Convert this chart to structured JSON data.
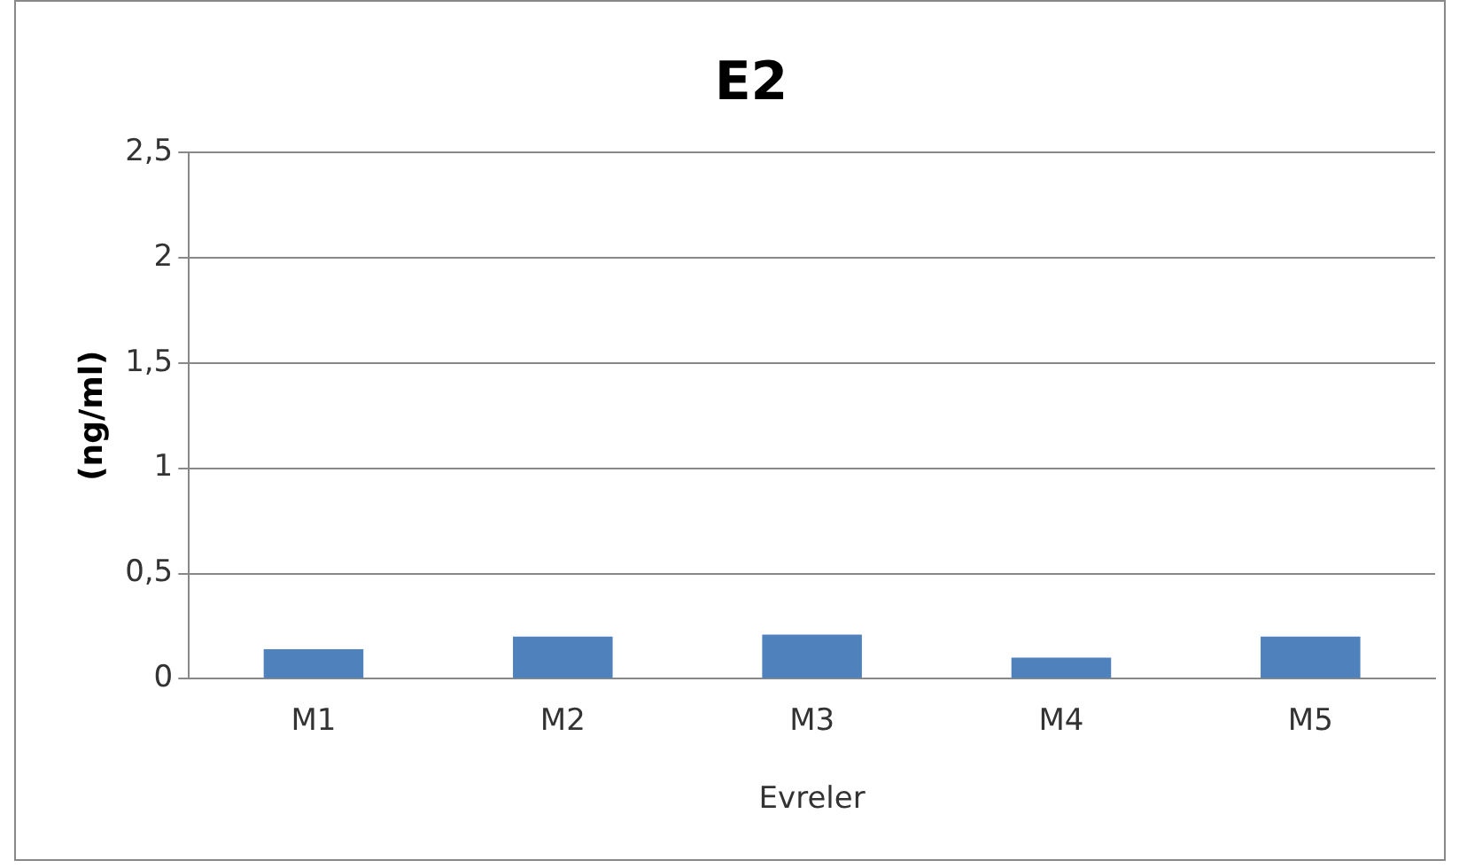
{
  "chart_data": {
    "type": "bar",
    "title": "E2",
    "xlabel": "Evreler",
    "ylabel": "(ng/ml)",
    "categories": [
      "M1",
      "M2",
      "M3",
      "M4",
      "M5"
    ],
    "values": [
      0.14,
      0.2,
      0.21,
      0.1,
      0.2
    ],
    "color": "#4f81bd",
    "ylim": [
      0,
      2.5
    ],
    "yticks": [
      {
        "value": 0,
        "label": "0"
      },
      {
        "value": 0.5,
        "label": "0,5"
      },
      {
        "value": 1,
        "label": "1"
      },
      {
        "value": 1.5,
        "label": "1,5"
      },
      {
        "value": 2,
        "label": "2"
      },
      {
        "value": 2.5,
        "label": "2,5"
      }
    ],
    "grid": "y",
    "legend": false
  }
}
